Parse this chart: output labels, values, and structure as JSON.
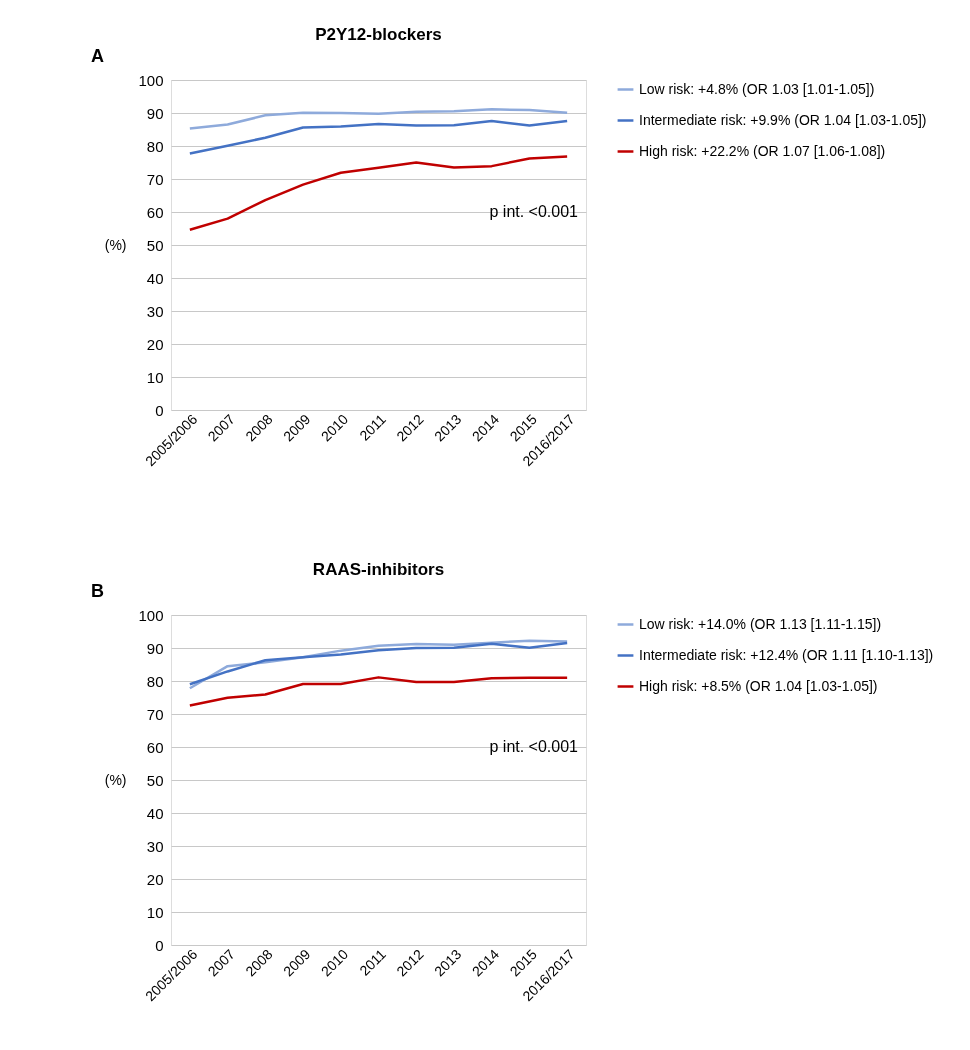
{
  "chart_data": [
    {
      "type": "line",
      "title": "P2Y12-blockers",
      "ylabel": "(%)",
      "categories": [
        "2005/2006",
        "2007",
        "2008",
        "2009",
        "2010",
        "2011",
        "2012",
        "2013",
        "2014",
        "2015",
        "2016/2017"
      ],
      "ylim": [
        0,
        100
      ],
      "yticks": [
        0,
        10,
        20,
        30,
        40,
        50,
        60,
        70,
        80,
        90,
        100
      ],
      "grid": "y",
      "legend": "right",
      "annotations": [
        "A",
        "p int. <0.001"
      ],
      "series": [
        {
          "name": "Low risk: +4.8% (OR 1.03 [1.01-1.05])",
          "color": "#8eaadb",
          "values": [
            85.3,
            86.5,
            89.3,
            90.1,
            90.0,
            89.8,
            90.4,
            90.5,
            91.1,
            90.9,
            90.1
          ]
        },
        {
          "name": "Intermediate risk: +9.9% (OR 1.04 [1.03-1.05])",
          "color": "#4472c4",
          "values": [
            77.7,
            80.1,
            82.5,
            85.6,
            85.9,
            86.7,
            86.2,
            86.3,
            87.6,
            86.2,
            87.6
          ]
        },
        {
          "name": "High risk: +22.2% (OR 1.07 [1.06-1.08])",
          "color": "#c00000",
          "values": [
            54.6,
            58.0,
            63.6,
            68.3,
            71.9,
            73.4,
            75.0,
            73.5,
            73.9,
            76.2,
            76.8
          ]
        }
      ]
    },
    {
      "type": "line",
      "title": "RAAS-inhibitors",
      "ylabel": "(%)",
      "categories": [
        "2005/2006",
        "2007",
        "2008",
        "2009",
        "2010",
        "2011",
        "2012",
        "2013",
        "2014",
        "2015",
        "2016/2017"
      ],
      "ylim": [
        0,
        100
      ],
      "yticks": [
        0,
        10,
        20,
        30,
        40,
        50,
        60,
        70,
        80,
        90,
        100
      ],
      "grid": "y",
      "legend": "right",
      "annotations": [
        "B",
        "p int. <0.001"
      ],
      "series": [
        {
          "name": "Low risk: +14.0% (OR 1.13 [1.11-1.15])",
          "color": "#8eaadb",
          "values": [
            77.8,
            84.5,
            85.7,
            87.2,
            89.2,
            90.7,
            91.2,
            91.0,
            91.6,
            92.2,
            92.0
          ]
        },
        {
          "name": "Intermediate risk: +12.4% (OR 1.11 [1.10-1.13])",
          "color": "#4472c4",
          "values": [
            79.0,
            82.9,
            86.3,
            87.2,
            88.0,
            89.3,
            90.0,
            90.1,
            91.3,
            90.1,
            91.5
          ]
        },
        {
          "name": "High risk: +8.5% (OR 1.04 [1.03-1.05])",
          "color": "#c00000",
          "values": [
            72.6,
            74.9,
            75.9,
            79.1,
            79.1,
            81.1,
            79.7,
            79.7,
            80.8,
            81.0,
            81.0
          ]
        }
      ]
    }
  ]
}
